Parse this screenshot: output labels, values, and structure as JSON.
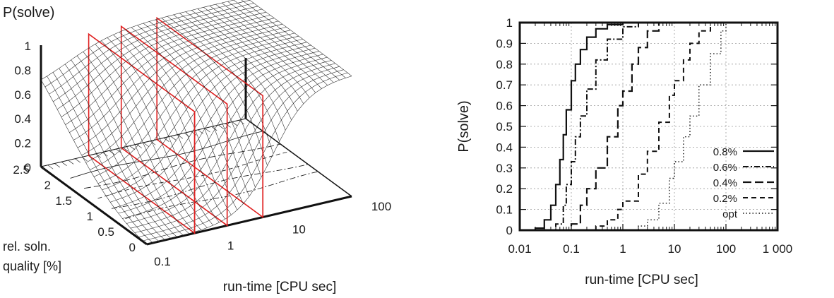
{
  "chart_data": [
    {
      "type": "surface3d",
      "zlabel": "P(solve)",
      "ylabel": "rel. soln. quality [%]",
      "xlabel": "run-time [CPU sec]",
      "z_ticks": [
        "0",
        "0.2",
        "0.4",
        "0.6",
        "0.8",
        "1"
      ],
      "y_ticks": [
        "0",
        "0.5",
        "1",
        "1.5",
        "2",
        "2.5"
      ],
      "x_ticks": [
        "0.1",
        "1",
        "10",
        "100"
      ],
      "x_scale": "log",
      "xlim": [
        0.1,
        100
      ],
      "ylim": [
        0,
        2.5
      ],
      "zlim": [
        0,
        1
      ],
      "contour_line_styles": [
        "solid",
        "long-dash",
        "dash",
        "dash-dot",
        "dash-dot"
      ],
      "highlighted_slices_color": "#e02020",
      "highlighted_slices_x": [
        0.5,
        1.5,
        5
      ]
    },
    {
      "type": "line",
      "ylabel": "P(solve)",
      "xlabel": "run-time [CPU sec]",
      "x_scale": "log",
      "xlim": [
        0.01,
        1000
      ],
      "ylim": [
        0,
        1
      ],
      "x_ticks": [
        "0.01",
        "0.1",
        "1",
        "10",
        "100",
        "1 000"
      ],
      "y_ticks": [
        "0",
        "0.1",
        "0.2",
        "0.3",
        "0.4",
        "0.5",
        "0.6",
        "0.7",
        "0.8",
        "0.9",
        "1"
      ],
      "grid": true,
      "legend_position": "bottom-right",
      "series": [
        {
          "name": "0.8%",
          "style": "solid",
          "x": [
            0.015,
            0.02,
            0.03,
            0.04,
            0.05,
            0.06,
            0.07,
            0.08,
            0.1,
            0.12,
            0.15,
            0.2,
            0.3,
            0.5,
            1
          ],
          "y": [
            0,
            0.01,
            0.05,
            0.12,
            0.22,
            0.34,
            0.46,
            0.58,
            0.72,
            0.8,
            0.87,
            0.93,
            0.97,
            0.99,
            1
          ]
        },
        {
          "name": "0.6%",
          "style": "dash-dot",
          "x": [
            0.035,
            0.05,
            0.07,
            0.08,
            0.1,
            0.12,
            0.15,
            0.2,
            0.3,
            0.5,
            1,
            2
          ],
          "y": [
            0,
            0.03,
            0.12,
            0.22,
            0.33,
            0.45,
            0.55,
            0.68,
            0.82,
            0.92,
            0.98,
            1
          ]
        },
        {
          "name": "0.4%",
          "style": "long-dash",
          "x": [
            0.07,
            0.1,
            0.15,
            0.2,
            0.3,
            0.5,
            0.8,
            1,
            1.5,
            2,
            3,
            5
          ],
          "y": [
            0,
            0.03,
            0.12,
            0.2,
            0.3,
            0.45,
            0.6,
            0.67,
            0.8,
            0.88,
            0.96,
            1
          ]
        },
        {
          "name": "0.2%",
          "style": "dash",
          "x": [
            0.2,
            0.3,
            0.5,
            0.8,
            1,
            2,
            3,
            5,
            8,
            10,
            15,
            20,
            30,
            50
          ],
          "y": [
            0,
            0.02,
            0.05,
            0.1,
            0.14,
            0.27,
            0.38,
            0.52,
            0.65,
            0.72,
            0.82,
            0.9,
            0.96,
            1
          ]
        },
        {
          "name": "opt",
          "style": "dotted",
          "x": [
            1,
            2,
            3,
            5,
            8,
            10,
            15,
            20,
            30,
            50,
            80,
            100
          ],
          "y": [
            0,
            0.02,
            0.05,
            0.13,
            0.25,
            0.33,
            0.45,
            0.55,
            0.7,
            0.85,
            0.96,
            1
          ]
        }
      ]
    }
  ]
}
